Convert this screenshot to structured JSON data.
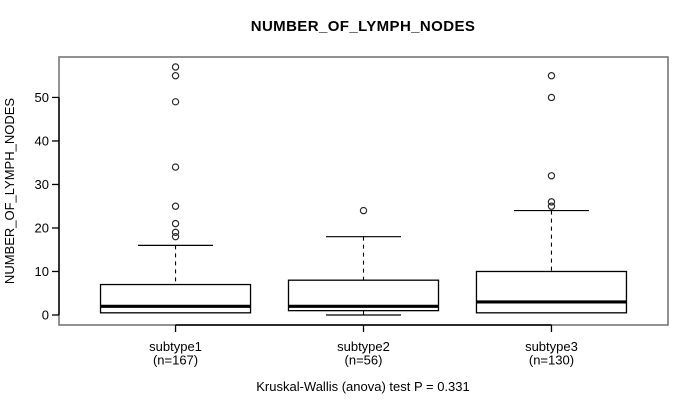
{
  "window": {
    "background": "#ffffff"
  },
  "colors": {
    "text": "#000000",
    "plot_frame": "#777777",
    "axis": "#000000",
    "box_stroke": "#000000",
    "box_fill": "#ffffff",
    "median": "#000000",
    "outlier_stroke": "#2b2b2b"
  },
  "chart_data": {
    "type": "boxplot",
    "title": "NUMBER_OF_LYMPH_NODES",
    "ylabel": "NUMBER_OF_LYMPH_NODES",
    "xlabel": "",
    "caption": "Kruskal-Wallis (anova) test P = 0.331",
    "test_name": "Kruskal-Wallis (anova)",
    "p_value": 0.331,
    "grid": false,
    "legend": "none",
    "ylim": [
      -2.3,
      59.3
    ],
    "yticks": [
      0,
      10,
      20,
      30,
      40,
      50
    ],
    "groups": [
      {
        "label": "subtype1",
        "n_label": "(n=167)",
        "n": 167,
        "stats": {
          "whisker_low": 0.5,
          "q1": 0.5,
          "median": 2,
          "q3": 7,
          "whisker_high": 16
        },
        "outliers": [
          18,
          19,
          21,
          25,
          34,
          49,
          55,
          57
        ]
      },
      {
        "label": "subtype2",
        "n_label": "(n=56)",
        "n": 56,
        "stats": {
          "whisker_low": 0,
          "q1": 1,
          "median": 2,
          "q3": 8,
          "whisker_high": 18
        },
        "outliers": [
          24
        ]
      },
      {
        "label": "subtype3",
        "n_label": "(n=130)",
        "n": 130,
        "stats": {
          "whisker_low": 0.5,
          "q1": 0.5,
          "median": 3,
          "q3": 10,
          "whisker_high": 24
        },
        "outliers": [
          25,
          26,
          32,
          50,
          55
        ]
      }
    ]
  }
}
